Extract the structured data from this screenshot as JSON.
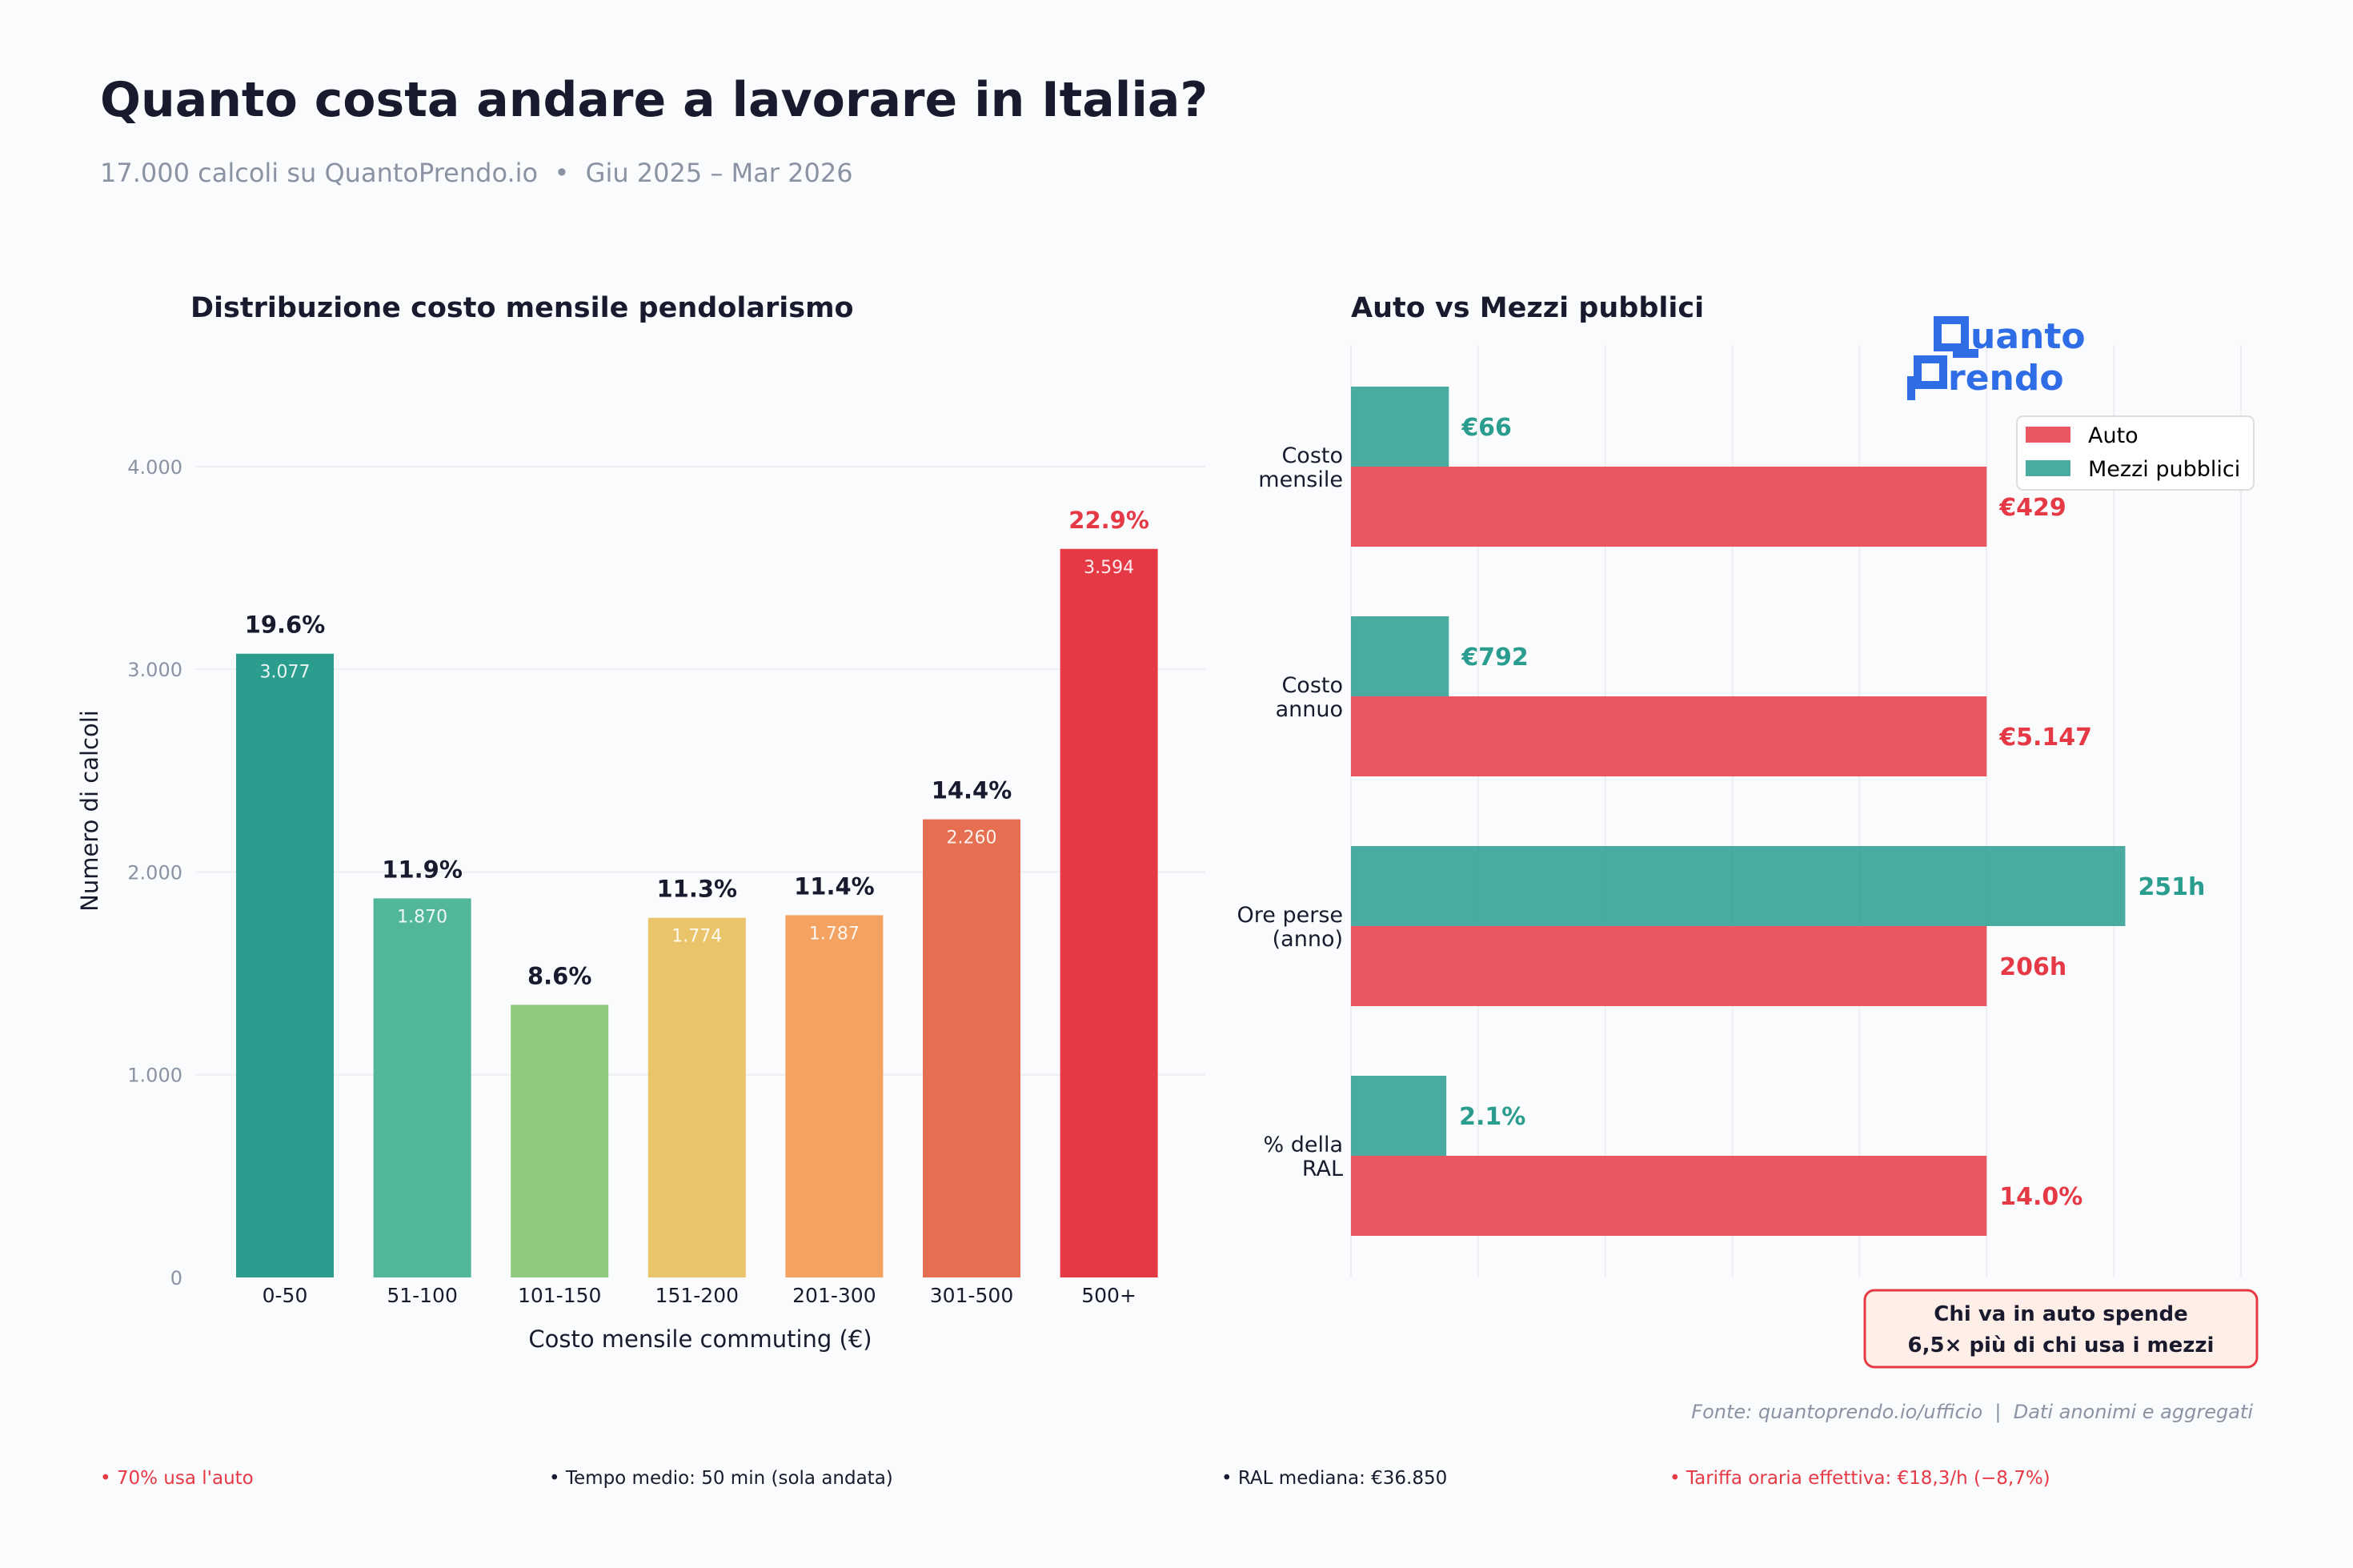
{
  "header": {
    "title": "Quanto costa andare a lavorare in Italia?",
    "subtitle": "17.000 calcoli su QuantoPrendo.io  •  Giu 2025 – Mar 2026"
  },
  "logo": {
    "text_line1": "Quanto",
    "text_line2": "Prendo",
    "color": "#2f6de6"
  },
  "chart_data": [
    {
      "type": "bar",
      "title": "Distribuzione costo mensile pendolarismo",
      "xlabel": "Costo mensile commuting (€)",
      "ylabel": "Numero di calcoli",
      "categories": [
        "0-50",
        "51-100",
        "101-150",
        "151-200",
        "201-300",
        "301-500",
        "500+"
      ],
      "values": [
        3077,
        1870,
        1345,
        1774,
        1787,
        2260,
        3594
      ],
      "count_labels": [
        "3.077",
        "1.870",
        "",
        "1.774",
        "1.787",
        "2.260",
        "3.594"
      ],
      "percent_labels": [
        "19.6%",
        "11.9%",
        "8.6%",
        "11.3%",
        "11.4%",
        "14.4%",
        "22.9%"
      ],
      "colors": [
        "#2a9d8f",
        "#52b69a",
        "#8fca7e",
        "#e9c46a",
        "#f4a261",
        "#e76f51",
        "#e63946"
      ],
      "highlight_percent_color": "#e63946",
      "ylim": [
        0,
        4600
      ],
      "yticks": [
        0,
        1000,
        2000,
        3000,
        4000
      ],
      "ytick_labels": [
        "0",
        "1.000",
        "2.000",
        "3.000",
        "4.000"
      ],
      "grid": "horizontal"
    },
    {
      "type": "bar",
      "orientation": "horizontal",
      "title": "Auto vs Mezzi pubblici",
      "categories": [
        "Costo\nmensile",
        "Costo\nannuo",
        "Ore perse\n(anno)",
        "% della\nRAL"
      ],
      "series": [
        {
          "name": "Auto",
          "color": "#e63946",
          "values": [
            1,
            1,
            1,
            1
          ],
          "labels": [
            "€429",
            "€5.147",
            "206h",
            "14.0%"
          ]
        },
        {
          "name": "Mezzi pubblici",
          "color": "#2a9d8f",
          "values": [
            0.154,
            0.154,
            1.218,
            0.15
          ],
          "labels": [
            "€66",
            "€792",
            "251h",
            "2.1%"
          ]
        }
      ],
      "xlim": [
        0,
        1.4
      ],
      "xticks": [
        0,
        0.2,
        0.4,
        0.6,
        0.8,
        1.0,
        1.2,
        1.4
      ],
      "grid": "vertical",
      "legend_placement": "lower-right",
      "annotation": {
        "line1": "Chi va in auto spende",
        "line2": "6,5× più di chi usa i mezzi"
      }
    }
  ],
  "footer": {
    "source": "Fonte: quantoprendo.io/ufficio  |  Dati anonimi e aggregati",
    "stats": [
      {
        "text": "• 70% usa l'auto",
        "color": "#e63946"
      },
      {
        "text": "• Tempo medio: 50 min (sola andata)",
        "color": "#1a1a2e"
      },
      {
        "text": "• RAL mediana: €36.850",
        "color": "#1a1a2e"
      },
      {
        "text": "• Tariffa oraria effettiva: €18,3/h (−8,7%)",
        "color": "#e63946"
      }
    ]
  }
}
